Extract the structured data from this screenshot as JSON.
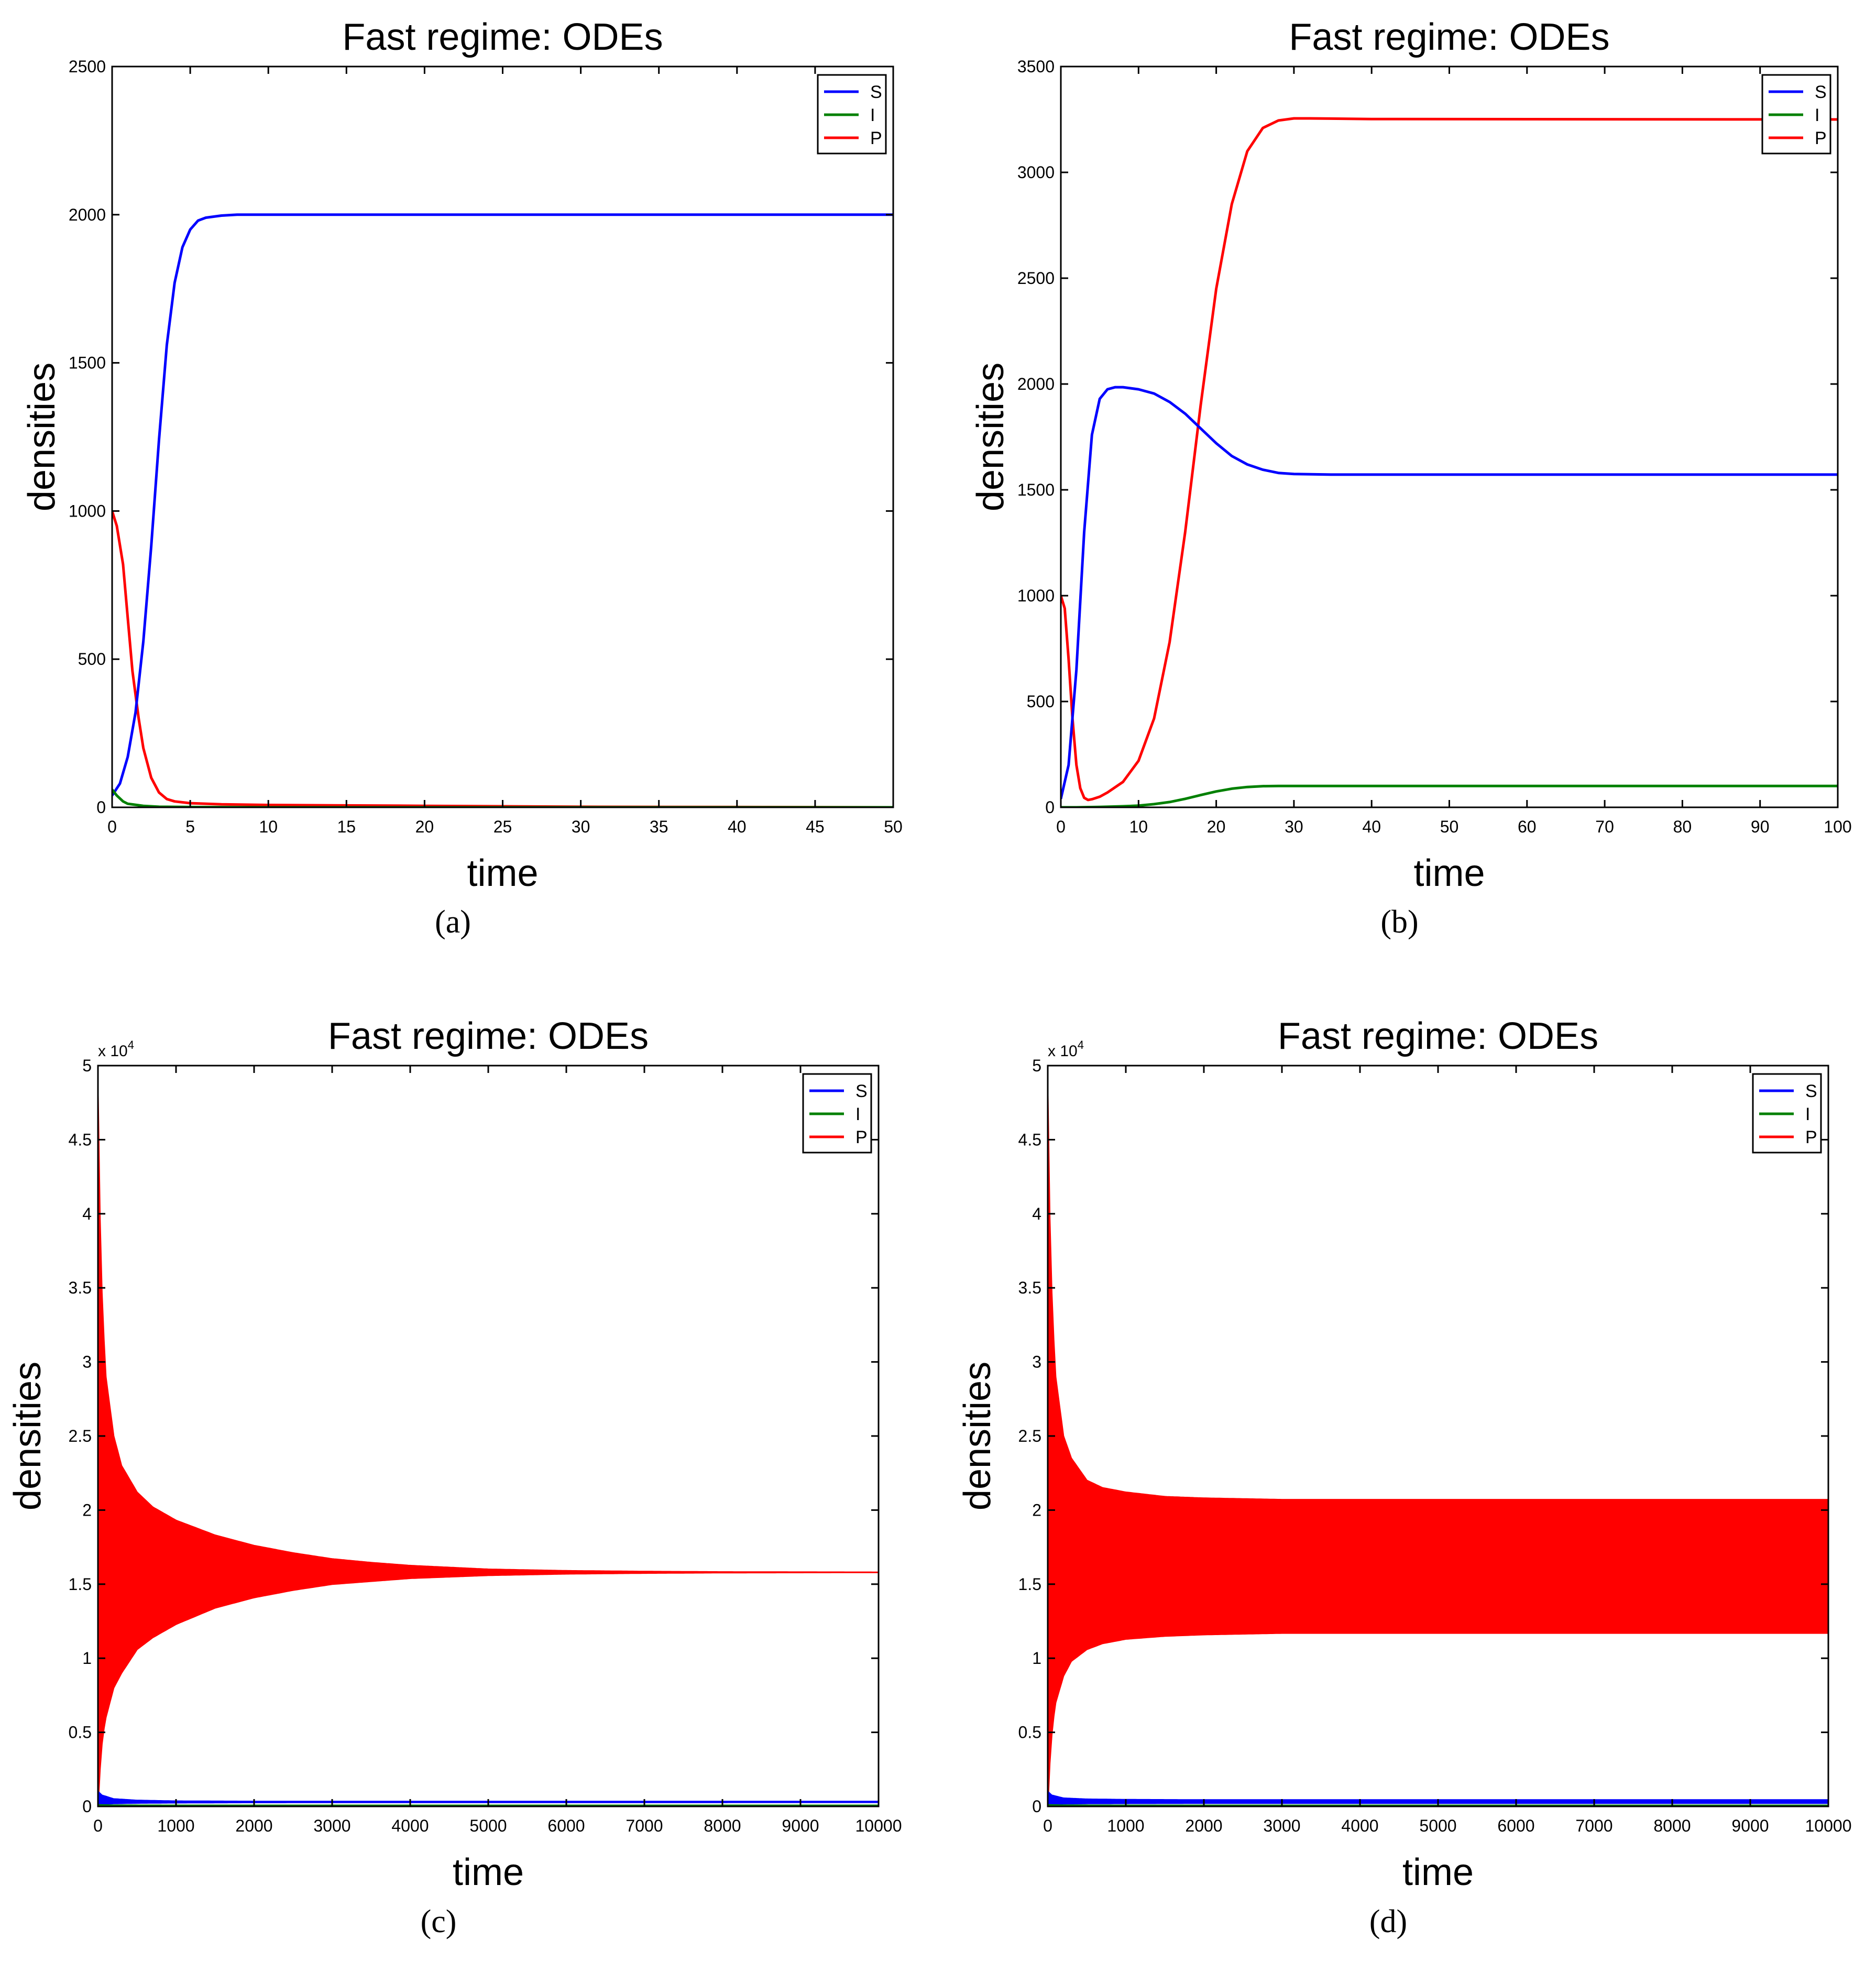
{
  "chart_data": [
    {
      "panel_label": "(a)",
      "type": "line",
      "title": "Fast regime: ODEs",
      "xlabel": "time",
      "ylabel": "densities",
      "xlim": [
        0,
        50
      ],
      "ylim": [
        0,
        2500
      ],
      "xticks": [
        0,
        5,
        10,
        15,
        20,
        25,
        30,
        35,
        40,
        45,
        50
      ],
      "yticks": [
        0,
        500,
        1000,
        1500,
        2000,
        2500
      ],
      "exponent_label": "",
      "legend_position": "top-right",
      "series": [
        {
          "name": "S",
          "color": "#0000ff",
          "x": [
            0,
            0.5,
            1,
            1.5,
            2,
            2.5,
            3,
            3.5,
            4,
            4.5,
            5,
            5.5,
            6,
            7,
            8,
            10,
            20,
            30,
            40,
            50
          ],
          "y": [
            40,
            80,
            170,
            320,
            560,
            880,
            1240,
            1560,
            1770,
            1890,
            1950,
            1980,
            1990,
            1997,
            2000,
            2000,
            2000,
            2000,
            2000,
            2000
          ]
        },
        {
          "name": "I",
          "color": "#008000",
          "x": [
            0,
            0.3,
            0.7,
            1,
            2,
            3,
            5,
            10,
            50
          ],
          "y": [
            60,
            40,
            20,
            12,
            5,
            2,
            1,
            0,
            0
          ]
        },
        {
          "name": "P",
          "color": "#ff0000",
          "x": [
            0,
            0.3,
            0.7,
            1,
            1.3,
            1.7,
            2,
            2.5,
            3,
            3.5,
            4,
            5,
            7,
            10,
            20,
            30,
            50
          ],
          "y": [
            1000,
            950,
            820,
            640,
            460,
            300,
            200,
            100,
            50,
            28,
            20,
            14,
            10,
            8,
            5,
            2,
            0
          ]
        }
      ]
    },
    {
      "panel_label": "(b)",
      "type": "line",
      "title": "Fast regime: ODEs",
      "xlabel": "time",
      "ylabel": "densities",
      "xlim": [
        0,
        100
      ],
      "ylim": [
        0,
        3500
      ],
      "xticks": [
        0,
        10,
        20,
        30,
        40,
        50,
        60,
        70,
        80,
        90,
        100
      ],
      "yticks": [
        0,
        500,
        1000,
        1500,
        2000,
        2500,
        3000,
        3500
      ],
      "exponent_label": "",
      "legend_position": "top-right",
      "series": [
        {
          "name": "S",
          "color": "#0000ff",
          "x": [
            0,
            1,
            2,
            3,
            4,
            5,
            6,
            7,
            8,
            10,
            12,
            14,
            16,
            18,
            20,
            22,
            24,
            26,
            28,
            30,
            35,
            40,
            50,
            100
          ],
          "y": [
            40,
            200,
            650,
            1300,
            1760,
            1930,
            1975,
            1985,
            1985,
            1975,
            1955,
            1915,
            1860,
            1790,
            1720,
            1660,
            1620,
            1595,
            1580,
            1575,
            1572,
            1572,
            1572,
            1572
          ]
        },
        {
          "name": "I",
          "color": "#008000",
          "x": [
            0,
            2,
            5,
            8,
            10,
            12,
            14,
            16,
            18,
            20,
            22,
            24,
            26,
            28,
            30,
            40,
            100
          ],
          "y": [
            0,
            0,
            2,
            5,
            8,
            15,
            25,
            40,
            58,
            75,
            88,
            96,
            100,
            101,
            101,
            101,
            101
          ]
        },
        {
          "name": "P",
          "color": "#ff0000",
          "x": [
            0,
            0.5,
            1,
            1.5,
            2,
            2.5,
            3,
            3.5,
            4,
            5,
            6,
            8,
            10,
            12,
            14,
            16,
            18,
            20,
            22,
            24,
            26,
            28,
            30,
            32,
            40,
            100
          ],
          "y": [
            1000,
            940,
            700,
            420,
            200,
            90,
            45,
            35,
            38,
            50,
            70,
            120,
            220,
            420,
            780,
            1300,
            1900,
            2450,
            2850,
            3100,
            3210,
            3245,
            3255,
            3255,
            3252,
            3250
          ]
        }
      ]
    },
    {
      "panel_label": "(c)",
      "type": "line",
      "title": "Fast regime: ODEs",
      "xlabel": "time",
      "ylabel": "densities",
      "xlim": [
        0,
        10000
      ],
      "ylim": [
        0,
        5
      ],
      "xticks": [
        0,
        1000,
        2000,
        3000,
        4000,
        5000,
        6000,
        7000,
        8000,
        9000,
        10000
      ],
      "yticks": [
        0,
        0.5,
        1,
        1.5,
        2,
        2.5,
        3,
        3.5,
        4,
        4.5,
        5
      ],
      "exponent_label": "x 10",
      "exponent_power": "4",
      "legend_position": "top-right",
      "series": [
        {
          "name": "S",
          "color": "#0000ff",
          "band": true,
          "x": [
            0,
            50,
            200,
            500,
            1000,
            2000,
            10000
          ],
          "upper": [
            0.1,
            0.075,
            0.05,
            0.04,
            0.035,
            0.033,
            0.033
          ],
          "lower": [
            0.01,
            0.015,
            0.02,
            0.023,
            0.025,
            0.027,
            0.028
          ]
        },
        {
          "name": "I",
          "color": "#008000",
          "band": true,
          "x": [
            0,
            200,
            1000,
            10000
          ],
          "upper": [
            0.01,
            0.008,
            0.007,
            0.007
          ],
          "lower": [
            0.0,
            0.002,
            0.004,
            0.004
          ]
        },
        {
          "name": "P",
          "color": "#ff0000",
          "band": true,
          "x": [
            0,
            30,
            60,
            100,
            200,
            300,
            500,
            700,
            1000,
            1500,
            2000,
            2500,
            3000,
            3500,
            4000,
            5000,
            6000,
            7000,
            8000,
            10000
          ],
          "upper": [
            4.8,
            3.8,
            3.3,
            2.9,
            2.5,
            2.3,
            2.12,
            2.02,
            1.93,
            1.83,
            1.76,
            1.71,
            1.67,
            1.645,
            1.625,
            1.6,
            1.59,
            1.585,
            1.582,
            1.58
          ],
          "lower": [
            0.0,
            0.3,
            0.48,
            0.6,
            0.8,
            0.9,
            1.06,
            1.14,
            1.23,
            1.34,
            1.41,
            1.46,
            1.5,
            1.52,
            1.54,
            1.56,
            1.57,
            1.575,
            1.578,
            1.58
          ]
        }
      ]
    },
    {
      "panel_label": "(d)",
      "type": "line",
      "title": "Fast regime: ODEs",
      "xlabel": "time",
      "ylabel": "densities",
      "xlim": [
        0,
        10000
      ],
      "ylim": [
        0,
        5
      ],
      "xticks": [
        0,
        1000,
        2000,
        3000,
        4000,
        5000,
        6000,
        7000,
        8000,
        9000,
        10000
      ],
      "yticks": [
        0,
        0.5,
        1,
        1.5,
        2,
        2.5,
        3,
        3.5,
        4,
        4.5,
        5
      ],
      "exponent_label": "x 10",
      "exponent_power": "4",
      "legend_position": "top-right",
      "series": [
        {
          "name": "S",
          "color": "#0000ff",
          "band": true,
          "x": [
            0,
            50,
            200,
            500,
            1000,
            2000,
            10000
          ],
          "upper": [
            0.1,
            0.075,
            0.055,
            0.048,
            0.045,
            0.043,
            0.043
          ],
          "lower": [
            0.01,
            0.015,
            0.018,
            0.02,
            0.021,
            0.022,
            0.022
          ]
        },
        {
          "name": "I",
          "color": "#008000",
          "band": true,
          "x": [
            0,
            200,
            1000,
            10000
          ],
          "upper": [
            0.01,
            0.008,
            0.007,
            0.007
          ],
          "lower": [
            0.0,
            0.002,
            0.004,
            0.004
          ]
        },
        {
          "name": "P",
          "color": "#ff0000",
          "band": true,
          "x": [
            0,
            30,
            60,
            100,
            200,
            300,
            500,
            700,
            1000,
            1500,
            2000,
            2500,
            3000,
            4000,
            5000,
            6000,
            8000,
            10000
          ],
          "upper": [
            4.8,
            3.8,
            3.3,
            2.9,
            2.5,
            2.35,
            2.2,
            2.15,
            2.12,
            2.09,
            2.08,
            2.075,
            2.07,
            2.07,
            2.07,
            2.07,
            2.07,
            2.07
          ],
          "lower": [
            0.0,
            0.35,
            0.55,
            0.7,
            0.88,
            0.98,
            1.06,
            1.1,
            1.13,
            1.15,
            1.16,
            1.165,
            1.17,
            1.17,
            1.17,
            1.17,
            1.17,
            1.17
          ]
        }
      ]
    }
  ]
}
